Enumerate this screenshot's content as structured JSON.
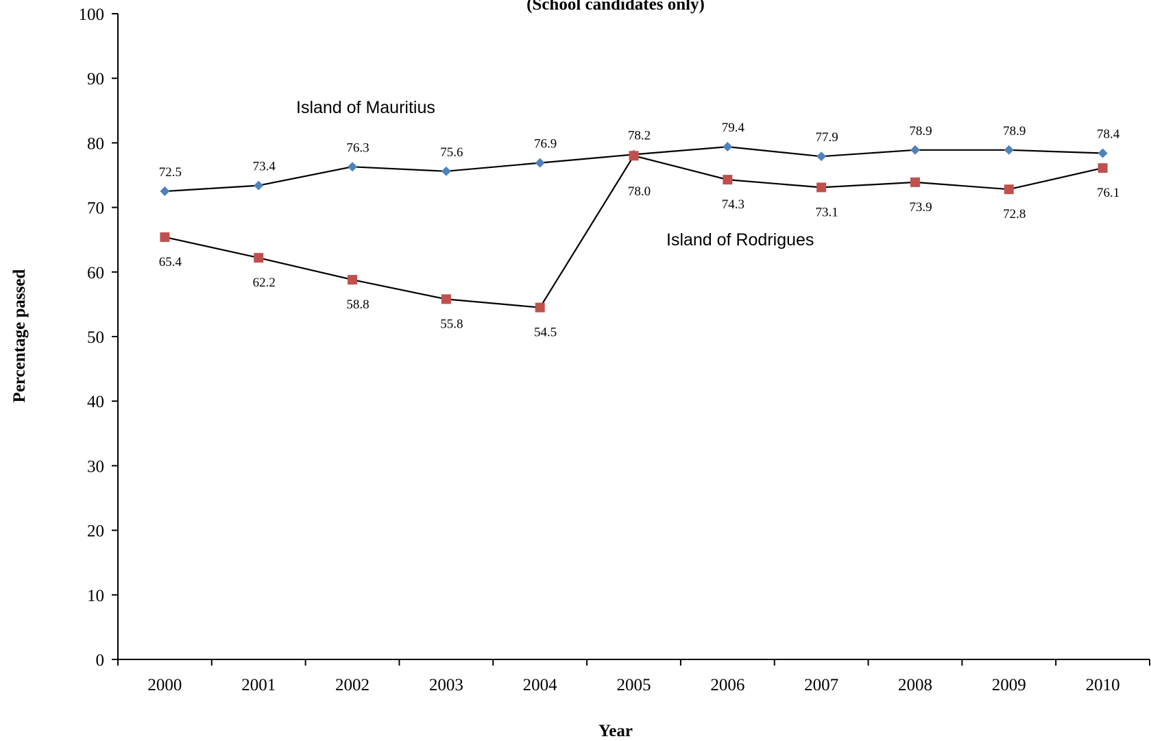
{
  "chart_data": {
    "type": "line",
    "title": "(School candidates only)",
    "xlabel": "Year",
    "ylabel": "Percentage passed",
    "ylim": [
      0,
      100
    ],
    "yticks": [
      0,
      10,
      20,
      30,
      40,
      50,
      60,
      70,
      80,
      90,
      100
    ],
    "categories": [
      "2000",
      "2001",
      "2002",
      "2003",
      "2004",
      "2005",
      "2006",
      "2007",
      "2008",
      "2009",
      "2010"
    ],
    "grid": false,
    "legend": "none",
    "series": [
      {
        "name": "Island of Mauritius",
        "marker": "diamond",
        "color": "#4f81bd",
        "values": [
          72.5,
          73.4,
          76.3,
          75.6,
          76.9,
          78.2,
          79.4,
          77.9,
          78.9,
          78.9,
          78.4
        ],
        "labels": [
          "72.5",
          "73.4",
          "76.3",
          "75.6",
          "76.9",
          "78.2",
          "79.4",
          "77.9",
          "78.9",
          "78.9",
          "78.4"
        ]
      },
      {
        "name": "Island of Rodrigues",
        "marker": "square",
        "color": "#c0504d",
        "values": [
          65.4,
          62.2,
          58.8,
          55.8,
          54.5,
          78.0,
          74.3,
          73.1,
          73.9,
          72.8,
          76.1
        ],
        "labels": [
          "65.4",
          "62.2",
          "58.8",
          "55.8",
          "54.5",
          "78.0",
          "74.3",
          "73.1",
          "73.9",
          "72.8",
          "76.1"
        ]
      }
    ]
  }
}
